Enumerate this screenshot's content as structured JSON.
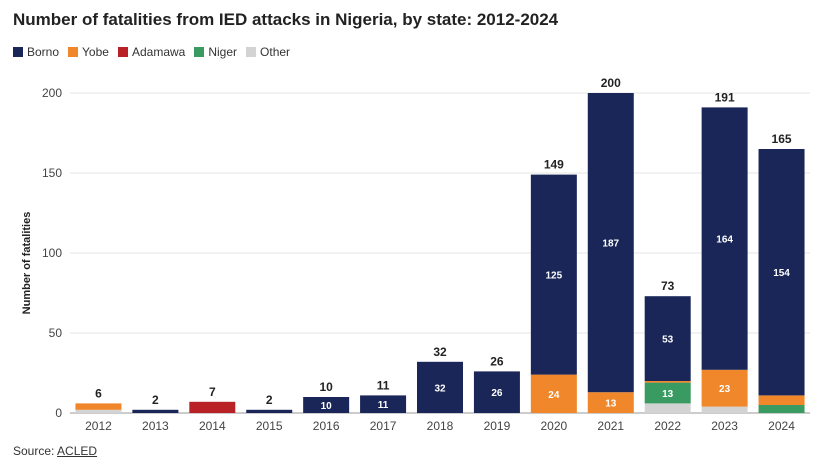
{
  "chart_data": {
    "type": "bar",
    "stacked": true,
    "title": "Number of fatalities from IED attacks in Nigeria, by state: 2012-2024",
    "ylabel": "Number of fatalities",
    "xlabel": "",
    "ylim": [
      0,
      200
    ],
    "yticks": [
      0,
      50,
      100,
      150,
      200
    ],
    "grid": true,
    "legend_position": "top-left",
    "categories": [
      "2012",
      "2013",
      "2014",
      "2015",
      "2016",
      "2017",
      "2018",
      "2019",
      "2020",
      "2021",
      "2022",
      "2023",
      "2024"
    ],
    "totals": [
      6,
      2,
      7,
      2,
      10,
      11,
      32,
      26,
      149,
      200,
      73,
      191,
      165
    ],
    "series": [
      {
        "name": "Other",
        "color": "#d3d3d3",
        "values": [
          2,
          0,
          0,
          0,
          0,
          0,
          0,
          0,
          0,
          0,
          6,
          4,
          0
        ]
      },
      {
        "name": "Niger",
        "color": "#3a9b62",
        "values": [
          0,
          0,
          0,
          0,
          0,
          0,
          0,
          0,
          0,
          0,
          13,
          0,
          5
        ]
      },
      {
        "name": "Yobe",
        "color": "#f0872a",
        "values": [
          4,
          0,
          0,
          0,
          0,
          0,
          0,
          0,
          24,
          13,
          1,
          23,
          6
        ]
      },
      {
        "name": "Adamawa",
        "color": "#b82227",
        "values": [
          0,
          0,
          7,
          0,
          0,
          0,
          0,
          0,
          0,
          0,
          0,
          0,
          0
        ]
      },
      {
        "name": "Borno",
        "color": "#1a2657",
        "values": [
          0,
          2,
          0,
          2,
          10,
          11,
          32,
          26,
          125,
          187,
          53,
          164,
          154
        ]
      }
    ],
    "segment_labels": [
      {
        "series": "Borno",
        "category": "2016",
        "text": "10"
      },
      {
        "series": "Borno",
        "category": "2017",
        "text": "11"
      },
      {
        "series": "Borno",
        "category": "2018",
        "text": "32"
      },
      {
        "series": "Borno",
        "category": "2019",
        "text": "26"
      },
      {
        "series": "Borno",
        "category": "2020",
        "text": "125"
      },
      {
        "series": "Yobe",
        "category": "2020",
        "text": "24"
      },
      {
        "series": "Borno",
        "category": "2021",
        "text": "187"
      },
      {
        "series": "Yobe",
        "category": "2021",
        "text": "13"
      },
      {
        "series": "Borno",
        "category": "2022",
        "text": "53"
      },
      {
        "series": "Niger",
        "category": "2022",
        "text": "13"
      },
      {
        "series": "Borno",
        "category": "2023",
        "text": "164"
      },
      {
        "series": "Yobe",
        "category": "2023",
        "text": "23"
      },
      {
        "series": "Borno",
        "category": "2024",
        "text": "154"
      }
    ]
  },
  "legend": [
    {
      "name": "Borno",
      "color": "#1a2657"
    },
    {
      "name": "Yobe",
      "color": "#f0872a"
    },
    {
      "name": "Adamawa",
      "color": "#b82227"
    },
    {
      "name": "Niger",
      "color": "#3a9b62"
    },
    {
      "name": "Other",
      "color": "#d3d3d3"
    }
  ],
  "source": {
    "prefix": "Source: ",
    "link_text": "ACLED"
  }
}
